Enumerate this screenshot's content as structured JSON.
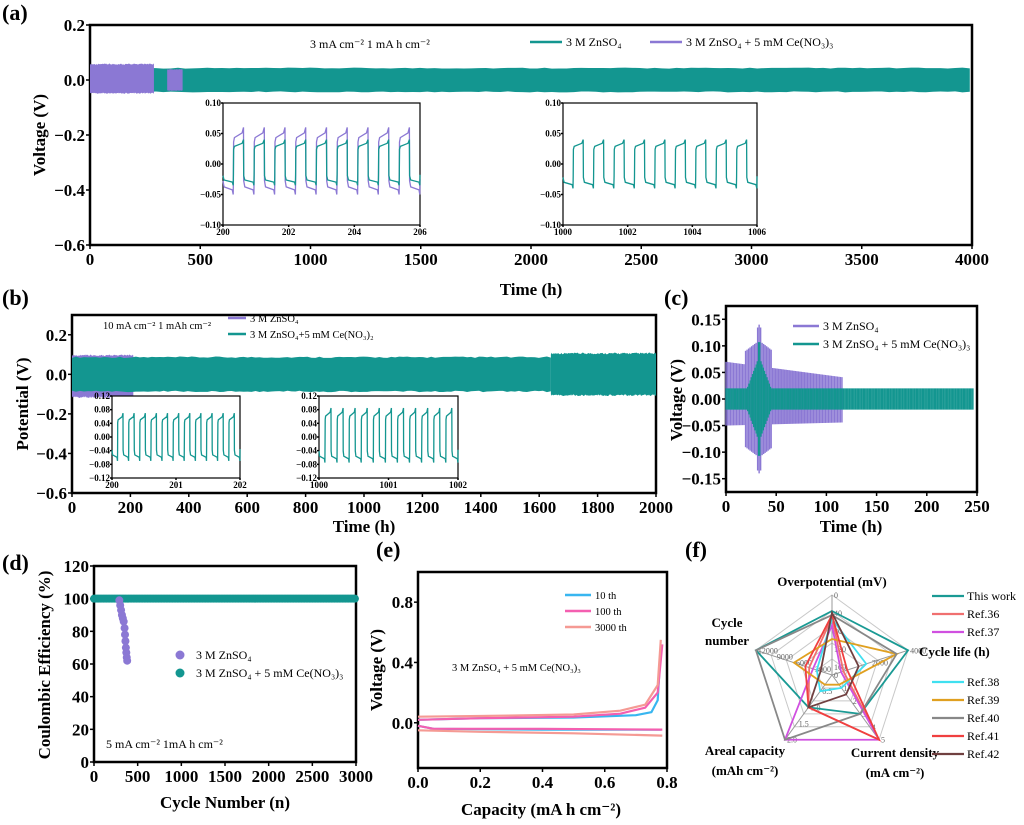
{
  "colors": {
    "teal": "#139690",
    "purple": "#8b78d4",
    "blue10": "#38b6f0",
    "pink100": "#f45fb0",
    "salmon3000": "#f59a94"
  },
  "chart_data": [
    {
      "panel": "(a)",
      "type": "line",
      "ylabel": "Voltage (V)",
      "xlabel": "Time (h)",
      "xlim": [
        0,
        4000
      ],
      "ylim": [
        -0.6,
        0.2
      ],
      "xticks": [
        "0",
        "500",
        "1000",
        "1500",
        "2000",
        "2500",
        "3000",
        "3500",
        "4000"
      ],
      "yticks": [
        "0.2",
        "0.0",
        "−0.2",
        "−0.4",
        "−0.6"
      ],
      "annotation": "3 mA cm⁻² 1 mA h cm⁻²",
      "legend": [
        "3 M ZnSO₄",
        "3 M ZnSO₄ + 5 mM Ce(NO₃)₃"
      ],
      "series": [
        {
          "name": "3 M ZnSO4",
          "color": "purple",
          "x_range": [
            0,
            420
          ],
          "envelope": [
            -0.05,
            0.06
          ]
        },
        {
          "name": "3 M ZnSO4 + 5 mM Ce(NO3)3",
          "color": "teal",
          "x_range": [
            0,
            3990
          ],
          "envelope": [
            -0.045,
            0.045
          ]
        }
      ],
      "insets": [
        {
          "xlim": [
            200,
            206
          ],
          "ylim": [
            -0.1,
            0.1
          ],
          "xticks": [
            "200",
            "202",
            "204",
            "206"
          ],
          "yticks": [
            "0.10",
            "0.05",
            "0.00",
            "−0.05",
            "−0.10"
          ],
          "series": [
            {
              "color": "purple",
              "low": -0.05,
              "high": 0.06
            },
            {
              "color": "teal",
              "low": -0.035,
              "high": 0.04
            }
          ],
          "cycles": 9
        },
        {
          "xlim": [
            1000,
            1006
          ],
          "ylim": [
            -0.1,
            0.1
          ],
          "xticks": [
            "1000",
            "1002",
            "1004",
            "1006"
          ],
          "yticks": [
            "0.10",
            "0.05",
            "0.00",
            "−0.05",
            "−0.10"
          ],
          "series": [
            {
              "color": "teal",
              "low": -0.04,
              "high": 0.04
            }
          ],
          "cycles": 9
        }
      ]
    },
    {
      "panel": "(b)",
      "type": "line",
      "ylabel": "Potential (V)",
      "xlabel": "Time (h)",
      "xlim": [
        0,
        2000
      ],
      "ylim": [
        -0.6,
        0.3
      ],
      "xticks": [
        "0",
        "200",
        "400",
        "600",
        "800",
        "1000",
        "1200",
        "1400",
        "1600",
        "1800",
        "2000"
      ],
      "yticks": [
        "0.2",
        "0.0",
        "−0.2",
        "−0.4",
        "−0.6"
      ],
      "annotation": "10 mA cm⁻²   1 mAh cm⁻²",
      "legend": [
        "3 M ZnSO₄",
        "3 M ZnSO₄+5 mM Ce(NO₃)₂"
      ],
      "series": [
        {
          "name": "3 M ZnSO4",
          "color": "purple",
          "x_range": [
            0,
            210
          ],
          "envelope": [
            -0.12,
            0.1
          ]
        },
        {
          "name": "3 M ZnSO4+5 mM Ce(NO3)2",
          "color": "teal",
          "x_range": [
            0,
            2000
          ],
          "envelope": [
            -0.09,
            0.09
          ]
        }
      ],
      "insets": [
        {
          "xlim": [
            200,
            202
          ],
          "ylim": [
            -0.12,
            0.12
          ],
          "xticks": [
            "200",
            "201",
            "202"
          ],
          "yticks": [
            "0.12",
            "0.08",
            "0.04",
            "0.00",
            "−0.04",
            "−0.08",
            "−0.12"
          ],
          "series": [
            {
              "color": "teal",
              "low": -0.07,
              "high": 0.07
            }
          ],
          "cycles": 11
        },
        {
          "xlim": [
            1000,
            1002
          ],
          "ylim": [
            -0.12,
            0.12
          ],
          "xticks": [
            "1000",
            "1001",
            "1002"
          ],
          "yticks": [
            "0.12",
            "0.08",
            "0.04",
            "0.00",
            "−0.04",
            "−0.08",
            "−0.12"
          ],
          "series": [
            {
              "color": "teal",
              "low": -0.075,
              "high": 0.085
            }
          ],
          "cycles": 11
        }
      ]
    },
    {
      "panel": "(c)",
      "type": "line",
      "ylabel": "Voltage (V)",
      "xlabel": "Time (h)",
      "xlim": [
        0,
        250
      ],
      "ylim": [
        -0.175,
        0.175
      ],
      "xticks": [
        "0",
        "50",
        "100",
        "150",
        "200",
        "250"
      ],
      "yticks": [
        "0.15",
        "0.10",
        "0.05",
        "0.00",
        "−0.05",
        "−0.10",
        "−0.15"
      ],
      "legend": [
        "3 M ZnSO₄",
        "3 M ZnSO₄ + 5 mM Ce(NO₃)₃"
      ],
      "series": [
        {
          "name": "3 M ZnSO4",
          "color": "purple",
          "x_range": [
            0,
            116
          ],
          "envelope": [
            -0.05,
            0.07
          ],
          "spike": {
            "x": 33,
            "peak": 0.145
          }
        },
        {
          "name": "3 M ZnSO4 + 5 mM Ce(NO3)3",
          "color": "teal",
          "x_range": [
            0,
            246
          ],
          "envelope": [
            -0.02,
            0.02
          ],
          "spike": {
            "x": 33,
            "peak": 0.11
          }
        }
      ]
    },
    {
      "panel": "(d)",
      "type": "scatter",
      "ylabel": "Coulombic Efficiency (%)",
      "xlabel": "Cycle Number (n)",
      "xlim": [
        0,
        3000
      ],
      "ylim": [
        0,
        120
      ],
      "xticks": [
        "0",
        "500",
        "1000",
        "1500",
        "2000",
        "2500",
        "3000"
      ],
      "yticks": [
        "120",
        "100",
        "80",
        "60",
        "40",
        "20",
        "0"
      ],
      "annotation": "5 mA cm⁻² 1mA h cm⁻²",
      "legend": [
        "3 M ZnSO₄",
        "3 M ZnSO₄ + 5 mM Ce(NO₃)₃"
      ],
      "series": [
        {
          "name": "3 M ZnSO4",
          "color": "purple",
          "points": [
            [
              290,
              99
            ],
            [
              300,
              96
            ],
            [
              310,
              93
            ],
            [
              320,
              90
            ],
            [
              330,
              88
            ],
            [
              340,
              86
            ],
            [
              350,
              82
            ],
            [
              355,
              78
            ],
            [
              360,
              74
            ],
            [
              365,
              70
            ],
            [
              370,
              67
            ],
            [
              375,
              64
            ],
            [
              380,
              62
            ]
          ]
        },
        {
          "name": "3 M ZnSO4 + 5 mM Ce(NO3)3",
          "color": "teal",
          "x_range": [
            0,
            3000
          ],
          "value": 100
        }
      ]
    },
    {
      "panel": "(e)",
      "type": "line",
      "ylabel": "Voltage (V)",
      "xlabel": "Capacity (mA h cm⁻²)",
      "xlim": [
        0,
        0.8
      ],
      "ylim": [
        -0.3,
        1.0
      ],
      "xticks": [
        "0.0",
        "0.2",
        "0.4",
        "0.6",
        "0.8"
      ],
      "yticks": [
        "0.8",
        "0.4",
        "0.0"
      ],
      "annotation": "3 M ZnSO₄ + 5 mM Ce(NO₃)₃",
      "legend": [
        "10 th",
        "100 th",
        "3000 th"
      ],
      "series": [
        {
          "name": "10 th",
          "color": "blue10",
          "charge": [
            [
              0,
              0.02
            ],
            [
              0.2,
              0.03
            ],
            [
              0.5,
              0.035
            ],
            [
              0.7,
              0.05
            ],
            [
              0.75,
              0.07
            ],
            [
              0.77,
              0.15
            ],
            [
              0.78,
              0.5
            ]
          ],
          "discharge": [
            [
              0,
              -0.02
            ],
            [
              0.05,
              -0.04
            ],
            [
              0.4,
              -0.045
            ],
            [
              0.78,
              -0.045
            ]
          ]
        },
        {
          "name": "100 th",
          "color": "pink100",
          "charge": [
            [
              0,
              0.02
            ],
            [
              0.2,
              0.03
            ],
            [
              0.5,
              0.04
            ],
            [
              0.65,
              0.06
            ],
            [
              0.73,
              0.1
            ],
            [
              0.77,
              0.2
            ],
            [
              0.785,
              0.52
            ]
          ],
          "discharge": [
            [
              0,
              -0.02
            ],
            [
              0.05,
              -0.04
            ],
            [
              0.4,
              -0.04
            ],
            [
              0.785,
              -0.045
            ]
          ]
        },
        {
          "name": "3000 th",
          "color": "salmon3000",
          "charge": [
            [
              0,
              0.04
            ],
            [
              0.2,
              0.045
            ],
            [
              0.5,
              0.055
            ],
            [
              0.65,
              0.08
            ],
            [
              0.73,
              0.12
            ],
            [
              0.77,
              0.25
            ],
            [
              0.78,
              0.55
            ]
          ],
          "discharge": [
            [
              0,
              -0.05
            ],
            [
              0.2,
              -0.06
            ],
            [
              0.5,
              -0.07
            ],
            [
              0.785,
              -0.085
            ]
          ]
        }
      ]
    },
    {
      "panel": "(f)",
      "type": "radar",
      "axes": [
        {
          "label": "Overpotential (mV)",
          "ticks": [
            "0",
            "40",
            "80",
            "120",
            "160"
          ]
        },
        {
          "label": "Cycle life (h)",
          "ticks": [
            "0",
            "2000",
            "4000"
          ]
        },
        {
          "label": "Current density (mA cm⁻²)",
          "ticks": [
            "1",
            "2",
            "3",
            "4",
            "5"
          ]
        },
        {
          "label": "Areal capacity (mAh cm⁻²)",
          "ticks": [
            "0.5",
            "1.0",
            "1.5",
            "2.0"
          ]
        },
        {
          "label": "Cycle number",
          "ticks": [
            "3000",
            "6000",
            "9000",
            "12000"
          ]
        }
      ],
      "legend_top": [
        "This work",
        "Ref.36",
        "Ref.37"
      ],
      "legend_bottom": [
        "Ref.38",
        "Ref.39",
        "Ref.40",
        "Ref.41",
        "Ref.42"
      ],
      "series": [
        {
          "name": "This work",
          "color": "#1a9a94",
          "values": [
            0.8,
            1.0,
            0.6,
            0.5,
            1.0
          ]
        },
        {
          "name": "Ref.36",
          "color": "#f07070",
          "values": [
            0.72,
            0.15,
            1.0,
            0.5,
            0.3
          ]
        },
        {
          "name": "Ref.37",
          "color": "#d050e0",
          "values": [
            0.62,
            0.12,
            1.0,
            1.0,
            0.25
          ]
        },
        {
          "name": "Ref.38",
          "color": "#40e0f0",
          "values": [
            0.7,
            0.45,
            0.2,
            0.25,
            0.2
          ]
        },
        {
          "name": "Ref.39",
          "color": "#e0a020",
          "values": [
            0.45,
            0.85,
            0.15,
            0.15,
            0.5
          ]
        },
        {
          "name": "Ref.40",
          "color": "#888888",
          "values": [
            0.75,
            0.85,
            0.6,
            1.0,
            1.0
          ]
        },
        {
          "name": "Ref.41",
          "color": "#f04040",
          "values": [
            0.75,
            0.2,
            1.0,
            0.5,
            0.35
          ]
        },
        {
          "name": "Ref.42",
          "color": "#704040",
          "values": [
            0.78,
            0.35,
            0.3,
            0.5,
            0.15
          ]
        }
      ]
    }
  ]
}
